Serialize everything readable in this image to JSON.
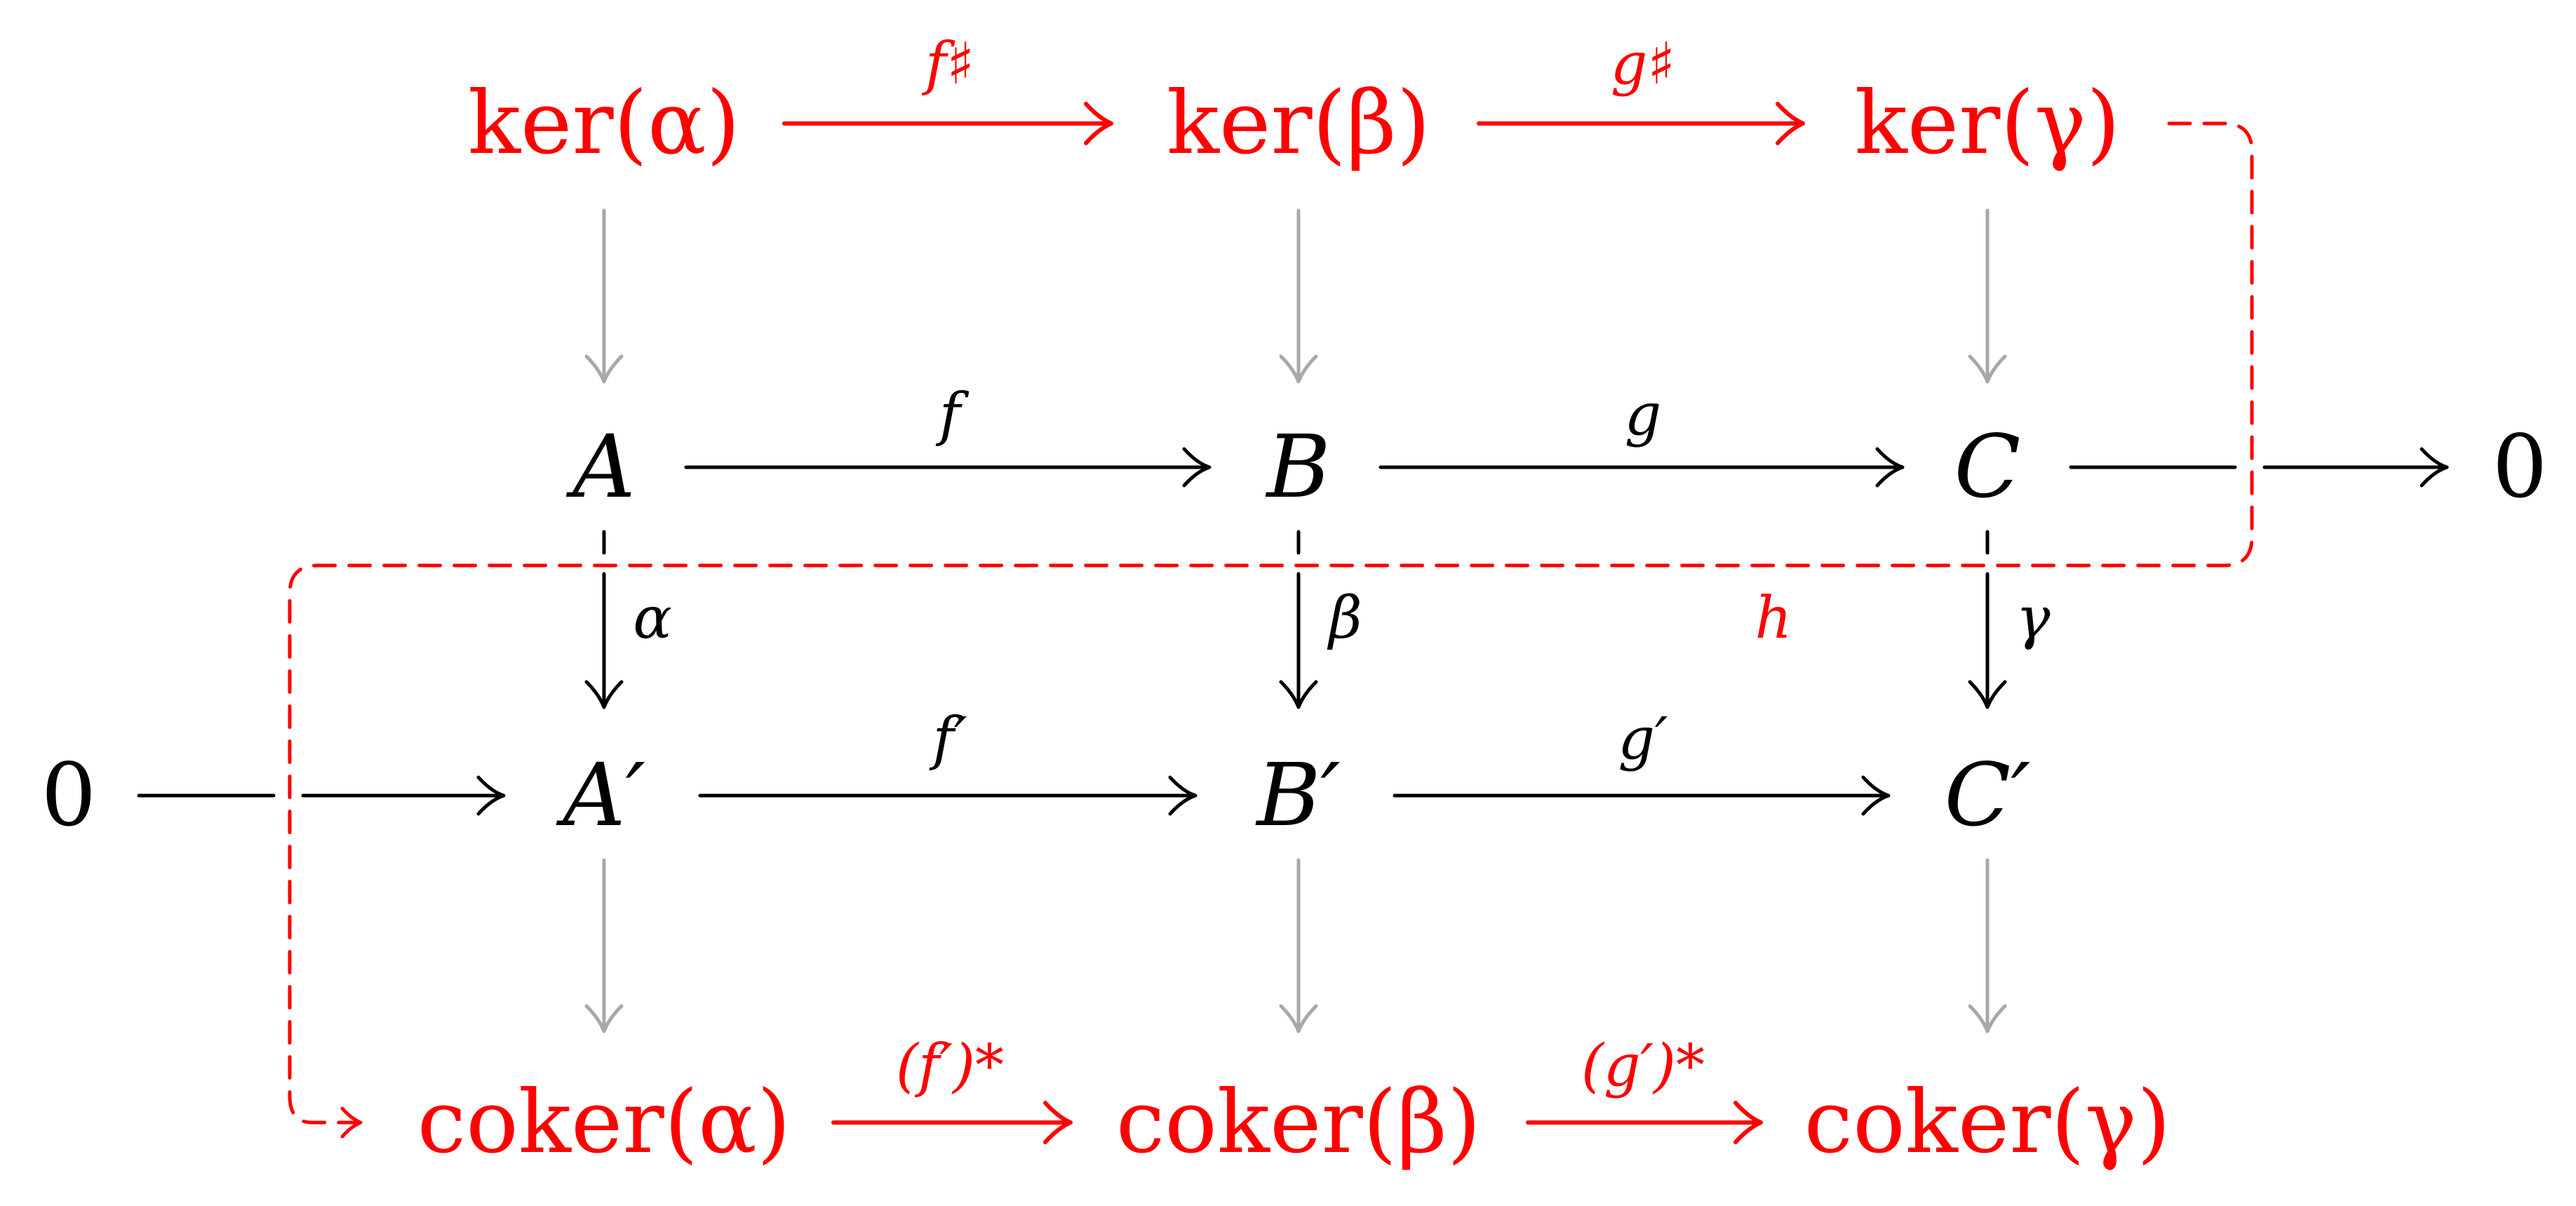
{
  "colors": {
    "highlight": "#ff0000",
    "main": "#000000",
    "auxiliary": "#a8a8a8"
  },
  "nodes": {
    "ker_alpha": "ker(α)",
    "ker_beta": "ker(β)",
    "ker_gamma": "ker(γ)",
    "A": "A",
    "B": "B",
    "C": "C",
    "zero_right": "0",
    "zero_left": "0",
    "A_prime": "A′",
    "B_prime": "B′",
    "C_prime": "C′",
    "coker_alpha": "coker(α)",
    "coker_beta": "coker(β)",
    "coker_gamma": "coker(γ)"
  },
  "labels": {
    "f_sharp": "f♯",
    "g_sharp": "g♯",
    "f": "f",
    "g": "g",
    "alpha": "α",
    "beta": "β",
    "gamma": "γ",
    "h": "h",
    "f_prime": "f′",
    "g_prime": "g′",
    "f_prime_star": "(f′)*",
    "g_prime_star": "(g′)*"
  }
}
